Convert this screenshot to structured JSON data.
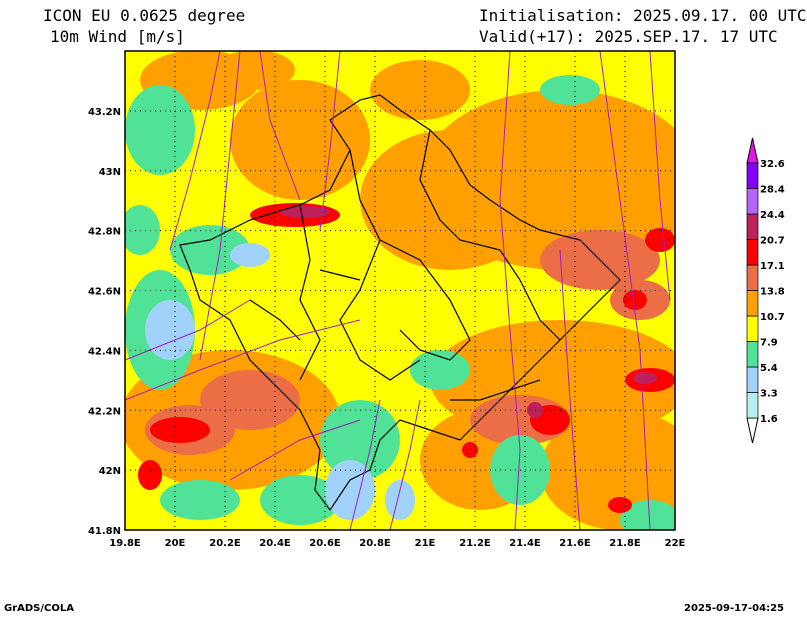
{
  "header": {
    "model": "ICON EU 0.0625 degree",
    "variable": "10m Wind [m/s]",
    "init": "Initialisation: 2025.09.17. 00 UTC",
    "valid": "Valid(+17): 2025.SEP.17. 17 UTC"
  },
  "axes": {
    "lon_ticks": [
      "19.8E",
      "20E",
      "20.2E",
      "20.4E",
      "20.6E",
      "20.8E",
      "21E",
      "21.2E",
      "21.4E",
      "21.6E",
      "21.8E",
      "22E"
    ],
    "lat_ticks": [
      "41.8N",
      "42N",
      "42.2N",
      "42.4N",
      "42.6N",
      "42.8N",
      "43N",
      "43.2N"
    ],
    "lon_range": [
      19.8,
      22.0
    ],
    "lat_range": [
      41.8,
      43.4
    ]
  },
  "colorbar": {
    "levels": [
      "1.6",
      "3.3",
      "5.4",
      "7.9",
      "10.7",
      "13.8",
      "17.1",
      "20.7",
      "24.4",
      "28.4",
      "32.6"
    ],
    "colors": [
      "#b4eeee",
      "#a0d2fa",
      "#50e296",
      "#ffff00",
      "#ffa000",
      "#eb6e46",
      "#ff0000",
      "#c0205a",
      "#b464ff",
      "#8200ff",
      "#e614e6"
    ]
  },
  "footer": {
    "left": "GrADS/COLA",
    "right": "2025-09-17-04:25"
  }
}
